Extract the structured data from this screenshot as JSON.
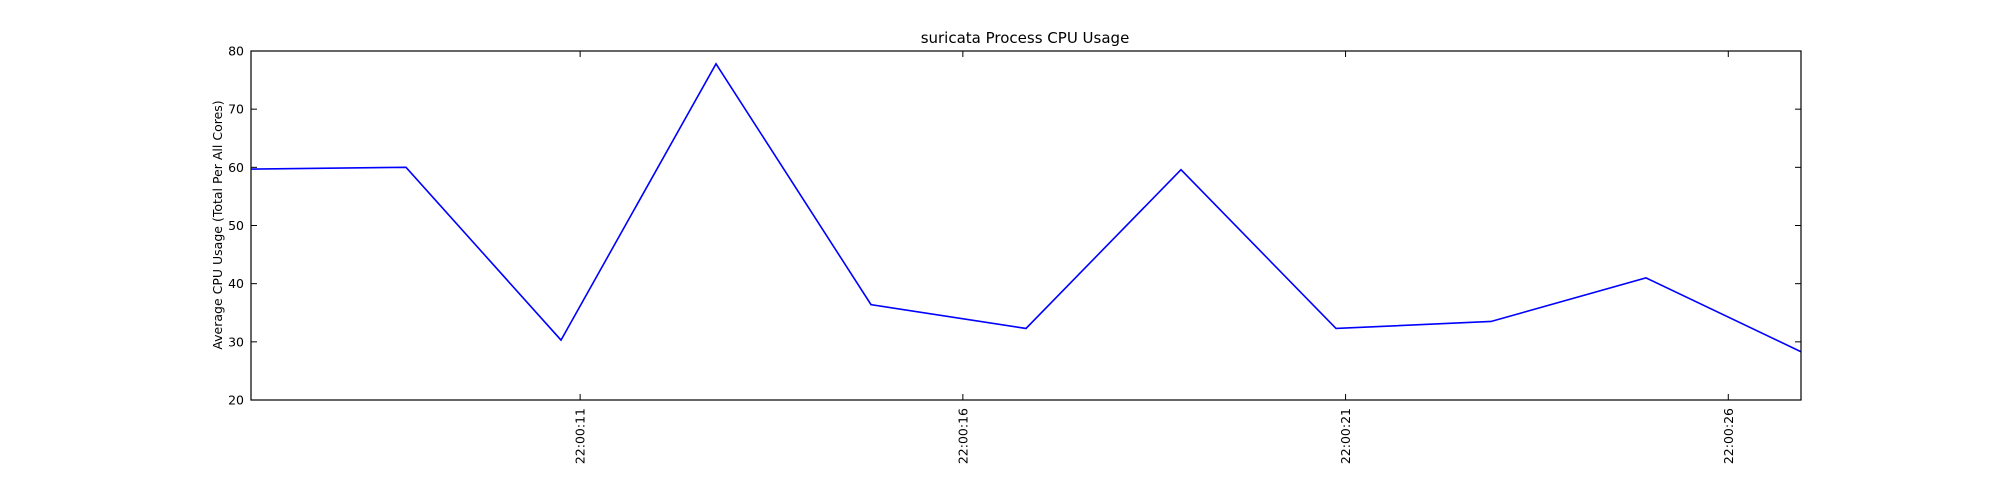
{
  "chart_data": {
    "type": "line",
    "title": "suricata Process CPU Usage",
    "xlabel": "",
    "ylabel": "Average CPU Usage (Total Per All Cores)",
    "ylim": [
      20,
      80
    ],
    "yticks": [
      20,
      30,
      40,
      50,
      60,
      70,
      80
    ],
    "xlim": [
      "22:00:06.700",
      "22:00:26.950"
    ],
    "xticks": [
      "22:00:11",
      "22:00:16",
      "22:00:21",
      "22:00:26"
    ],
    "grid": false,
    "series": [
      {
        "color": "#0000ff",
        "x": [
          "22:00:06.700",
          "22:00:08.725",
          "22:00:10.750",
          "22:00:12.775",
          "22:00:14.800",
          "22:00:16.825",
          "22:00:18.850",
          "22:00:20.875",
          "22:00:22.900",
          "22:00:24.925",
          "22:00:26.950"
        ],
        "y": [
          59.7,
          60.0,
          30.3,
          77.8,
          36.4,
          32.3,
          59.6,
          32.3,
          33.5,
          41.0,
          28.3
        ]
      }
    ]
  }
}
